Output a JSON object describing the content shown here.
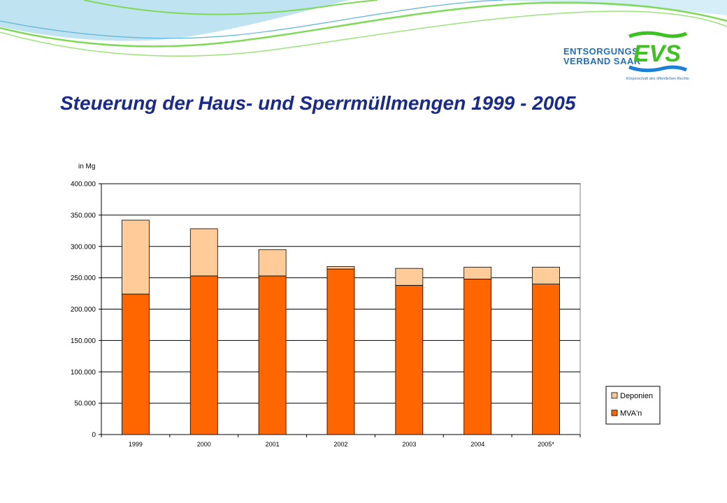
{
  "page": {
    "title": "Steuerung der Haus- und Sperrmüllmengen 1999 - 2005"
  },
  "logo": {
    "line1": "ENTSORGUNGS",
    "line2": "VERBAND SAAR",
    "sub": "Körperschaft des öffentlichen Rechts",
    "mark": "EVS",
    "colors": {
      "text": "#1f6fbf",
      "mark_green": "#3cc21e",
      "mark_blue": "#1d7fd6"
    }
  },
  "colors": {
    "wave_green": "#7ed957",
    "wave_blue": "#bfe3f0",
    "title": "#1a2a8a"
  },
  "chart_data": {
    "type": "bar",
    "stacked": true,
    "categories": [
      "1999",
      "2000",
      "2001",
      "2002",
      "2003",
      "2004",
      "2005*"
    ],
    "series": [
      {
        "name": "MVA'n",
        "color": "#ff6600",
        "values": [
          224000,
          253000,
          253000,
          264000,
          238000,
          248000,
          240000
        ]
      },
      {
        "name": "Deponien",
        "color": "#ffcc99",
        "values": [
          118000,
          75000,
          42000,
          4000,
          27000,
          19000,
          27000
        ]
      }
    ],
    "unit_label": "in Mg",
    "ylim": [
      0,
      400000
    ],
    "yticks": [
      0,
      50000,
      100000,
      150000,
      200000,
      250000,
      300000,
      350000,
      400000
    ],
    "ytick_labels": [
      "0",
      "50.000",
      "100.000",
      "150.000",
      "200.000",
      "250.000",
      "300.000",
      "350.000",
      "400.000"
    ],
    "grid": true,
    "legend": [
      "Deponien",
      "MVA'n"
    ],
    "legend_position": "right"
  }
}
